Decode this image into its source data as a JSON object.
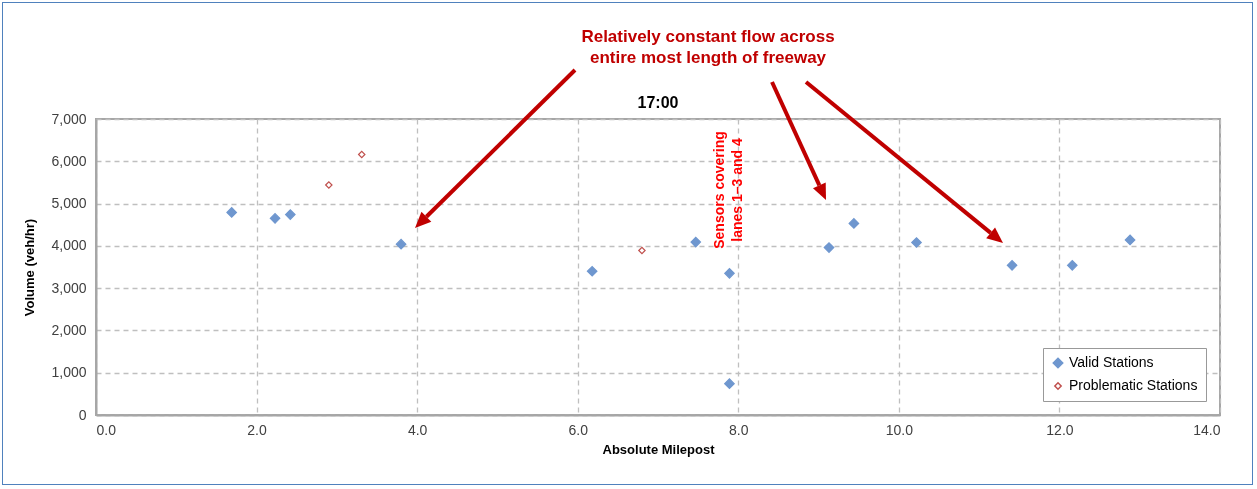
{
  "chart_data": {
    "type": "scatter",
    "title": "17:00",
    "xlabel": "Absolute Milepost",
    "ylabel": "Volume (veh/hr)",
    "xlim": [
      0,
      14
    ],
    "xticks": [
      {
        "value": 0,
        "label": "0.0"
      },
      {
        "value": 2,
        "label": "2.0"
      },
      {
        "value": 4,
        "label": "4.0"
      },
      {
        "value": 6,
        "label": "6.0"
      },
      {
        "value": 8,
        "label": "8.0"
      },
      {
        "value": 10,
        "label": "10.0"
      },
      {
        "value": 12,
        "label": "12.0"
      },
      {
        "value": 14,
        "label": "14.0"
      }
    ],
    "ylim": [
      0,
      7000
    ],
    "yticks": [
      0,
      {
        "value": 1000,
        "label": "1,000"
      },
      {
        "value": 2000,
        "label": "2,000"
      },
      {
        "value": 3000,
        "label": "3,000"
      },
      {
        "value": 4000,
        "label": "4,000"
      },
      {
        "value": 5000,
        "label": "5,000"
      },
      {
        "value": 6000,
        "label": "6,000"
      },
      {
        "value": 7000,
        "label": "7,000"
      }
    ],
    "grid": true,
    "legend": "bottom right",
    "marker": "diamond",
    "series": [
      {
        "name": "Valid Stations",
        "color": "#6f97cf",
        "x": [
          1.69,
          2.23,
          2.42,
          3.8,
          6.18,
          7.47,
          7.89,
          7.89,
          9.13,
          9.44,
          10.22,
          11.41,
          12.16,
          12.88
        ],
        "values": [
          4790,
          4650,
          4740,
          4040,
          3400,
          4090,
          3350,
          740,
          3960,
          4530,
          4080,
          3540,
          3540,
          4140
        ]
      },
      {
        "name": "Problematic Stations",
        "color": "#c0504d",
        "x": [
          2.9,
          3.31,
          6.8
        ],
        "values": [
          5440,
          6160,
          3890
        ]
      }
    ],
    "annotations": [
      "Relatively constant flow across\nentire most length of freeway",
      "Sensors covering\nlanes 1–3 and 4"
    ]
  }
}
